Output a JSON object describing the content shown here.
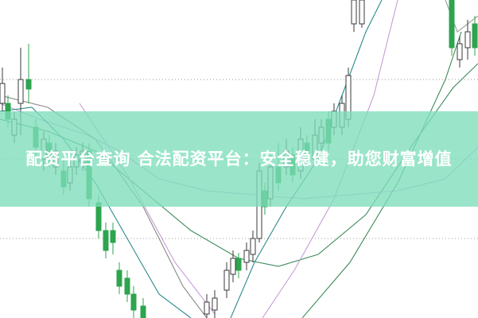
{
  "banner": {
    "title": "配资平台查询 合法配资平台：安全稳健，助您财富增值"
  },
  "chart_data": {
    "type": "candlestick",
    "title": "",
    "grid": "dotted horizontal",
    "colors": {
      "up": "#3a3a3a",
      "down": "#2da44e",
      "ma_short": "#2b8a8a",
      "ma_mid": "#c79bd6",
      "ma_long": "#3c8a5a",
      "banner": "#7ddebb"
    }
  }
}
